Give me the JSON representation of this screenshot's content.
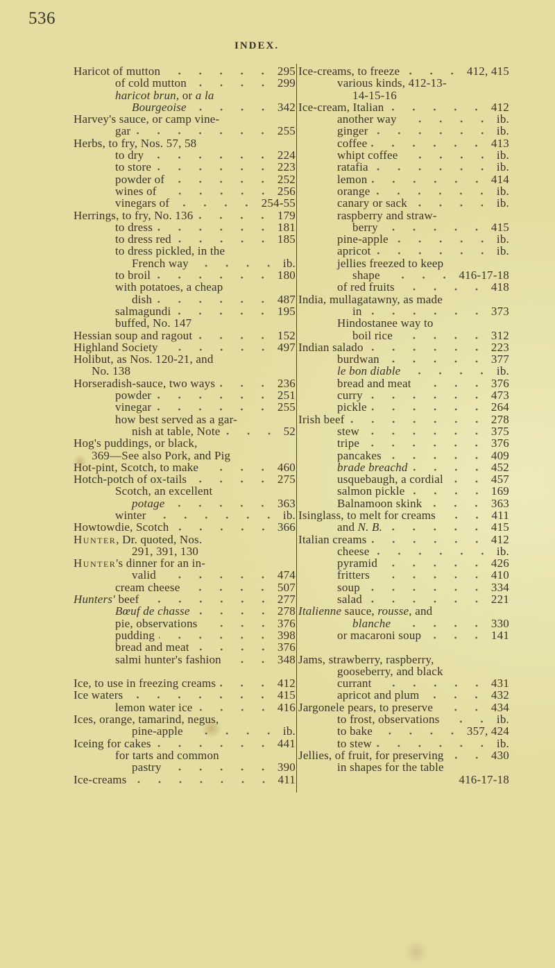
{
  "header": {
    "page_number": "536",
    "running_head": "INDEX."
  },
  "left": [
    {
      "text": "Haricot of mutton",
      "p": "295",
      "l": 0
    },
    {
      "text": "of cold mutton",
      "p": "299",
      "l": 1
    },
    {
      "parts": [
        {
          "s": "haricot brun,",
          "i": true
        },
        {
          "s": " or "
        },
        {
          "s": "a la",
          "i": true
        }
      ],
      "l": 1
    },
    {
      "parts": [
        {
          "s": "Bourgeoise",
          "i": true
        }
      ],
      "p": "342",
      "l": 2
    },
    {
      "text": "Harvey's sauce, or camp vine-",
      "l": 0
    },
    {
      "text": "gar",
      "p": "255",
      "l": 1
    },
    {
      "text": "Herbs, to fry, Nos. 57, 58",
      "l": 0
    },
    {
      "text": "to dry",
      "p": "224",
      "l": 1
    },
    {
      "text": "to store",
      "p": "223",
      "l": 1
    },
    {
      "text": "powder of",
      "p": "252",
      "l": 1
    },
    {
      "text": "wines of",
      "p": "256",
      "l": 1
    },
    {
      "text": "vinegars of",
      "p": "254-55",
      "l": 1
    },
    {
      "text": "Herrings, to fry, No. 136",
      "p": "179",
      "l": 0
    },
    {
      "text": "to dress",
      "p": "181",
      "l": 1
    },
    {
      "text": "to dress red",
      "p": "185",
      "l": 1
    },
    {
      "text": "to dress pickled, in the",
      "l": 1
    },
    {
      "text": "French way",
      "p": "ib.",
      "l": 2
    },
    {
      "text": "to broil",
      "p": "180",
      "l": 1
    },
    {
      "text": "with potatoes, a cheap",
      "l": 1
    },
    {
      "text": "dish",
      "p": "487",
      "l": 2
    },
    {
      "text": "salmagundi",
      "p": "195",
      "l": 1
    },
    {
      "text": "buffed, No. 147",
      "l": 1
    },
    {
      "text": "Hessian soup and ragout",
      "p": "152",
      "l": 0
    },
    {
      "text": "Highland Society",
      "p": "497",
      "l": 0
    },
    {
      "text": "Holibut, as Nos. 120-21, and",
      "l": 0
    },
    {
      "text": "No. 138",
      "l": "h"
    },
    {
      "text": "Horseradish-sauce, two ways",
      "p": "236",
      "l": 0
    },
    {
      "text": "powder",
      "p": "251",
      "l": 1
    },
    {
      "text": "vinegar",
      "p": "255",
      "l": 1
    },
    {
      "text": "how best served as a gar-",
      "l": 1
    },
    {
      "text": "nish at table, Note",
      "p": "52",
      "l": 2
    },
    {
      "text": "Hog's puddings, or black,",
      "l": 0
    },
    {
      "text": "369—See also Pork, and Pig",
      "l": "h"
    },
    {
      "text": "Hot-pint, Scotch, to make",
      "p": "460",
      "l": 0
    },
    {
      "text": "Hotch-potch of ox-tails",
      "p": "275",
      "l": 0
    },
    {
      "text": "Scotch, an excellent",
      "l": 1
    },
    {
      "parts": [
        {
          "s": "potage",
          "i": true
        }
      ],
      "p": "363",
      "l": 2
    },
    {
      "text": "winter",
      "p": "ib.",
      "l": 1
    },
    {
      "text": "Howtowdie, Scotch",
      "p": "366",
      "l": 0
    },
    {
      "parts": [
        {
          "s": "Hunter",
          "sc": true
        },
        {
          "s": ", Dr. quoted, Nos."
        }
      ],
      "l": 0
    },
    {
      "text": "291, 391, 130",
      "l": 2
    },
    {
      "parts": [
        {
          "s": "Hunter",
          "sc": true
        },
        {
          "s": "'s dinner for an in-"
        }
      ],
      "l": 0
    },
    {
      "text": "valid",
      "p": "474",
      "l": 2
    },
    {
      "text": "cream cheese",
      "p": "507",
      "l": 1
    },
    {
      "parts": [
        {
          "s": "Hunters'",
          "i": true
        },
        {
          "s": " beef"
        }
      ],
      "p": "277",
      "l": 0
    },
    {
      "parts": [
        {
          "s": "Bœuf de chasse",
          "i": true
        }
      ],
      "p": "278",
      "l": 1
    },
    {
      "text": "pie, observations",
      "p": "376",
      "l": 1
    },
    {
      "text": "pudding",
      "p": "398",
      "l": 1
    },
    {
      "text": "bread and meat",
      "p": "376",
      "l": 1
    },
    {
      "text": "salmi hunter's fashion",
      "p": "348",
      "l": 1
    },
    {
      "blank": true
    },
    {
      "text": "Ice, to use in freezing creams",
      "p": "412",
      "l": 0
    },
    {
      "text": "Ice waters",
      "p": "415",
      "l": 0
    },
    {
      "text": "lemon water ice",
      "p": "416",
      "l": 1
    },
    {
      "text": "Ices, orange, tamarind, negus,",
      "l": 0
    },
    {
      "text": "pine-apple",
      "p": "ib.",
      "l": 2
    },
    {
      "text": "Iceing for cakes",
      "p": "441",
      "l": 0
    },
    {
      "text": "for tarts and common",
      "l": 1
    },
    {
      "text": "pastry",
      "p": "390",
      "l": 2
    },
    {
      "text": "Ice-creams",
      "p": "411",
      "l": 0
    }
  ],
  "right": [
    {
      "text": "Ice-creams, to freeze",
      "p": "412, 415",
      "l": 0
    },
    {
      "text": "various kinds, 412-13-",
      "l": 1
    },
    {
      "text": "14-15-16",
      "l": 2
    },
    {
      "text": "Ice-cream, Italian",
      "p": "412",
      "l": 0
    },
    {
      "text": "another way",
      "p": "ib.",
      "l": 1
    },
    {
      "text": "ginger",
      "p": "ib.",
      "l": 1
    },
    {
      "text": "coffee",
      "p": "413",
      "l": 1
    },
    {
      "text": "whipt coffee",
      "p": "ib.",
      "l": 1
    },
    {
      "text": "ratafia",
      "p": "ib.",
      "l": 1
    },
    {
      "text": "lemon",
      "p": "414",
      "l": 1
    },
    {
      "text": "orange",
      "p": "ib.",
      "l": 1
    },
    {
      "text": "canary or sack",
      "p": "ib.",
      "l": 1
    },
    {
      "text": "raspberry and straw-",
      "l": 1
    },
    {
      "text": "berry",
      "p": "415",
      "l": 2
    },
    {
      "text": "pine-apple",
      "p": "ib.",
      "l": 1
    },
    {
      "text": "apricot",
      "p": "ib.",
      "l": 1
    },
    {
      "text": "jellies freezed to keep",
      "l": 1
    },
    {
      "text": "shape",
      "p": "416-17-18",
      "l": 2
    },
    {
      "text": "of red fruits",
      "p": "418",
      "l": 1
    },
    {
      "text": "India, mullagatawny, as made",
      "l": 0
    },
    {
      "text": "in",
      "p": "373",
      "l": 2
    },
    {
      "text": "Hindostanee way to",
      "l": 1
    },
    {
      "text": "boil rice",
      "p": "312",
      "l": 2
    },
    {
      "text": "Indian salado",
      "p": "223",
      "l": 0
    },
    {
      "text": "burdwan",
      "p": "377",
      "l": 1
    },
    {
      "parts": [
        {
          "s": "le bon diable",
          "i": true
        }
      ],
      "p": "ib.",
      "l": 1
    },
    {
      "text": "bread and meat",
      "p": "376",
      "l": 1
    },
    {
      "text": "curry",
      "p": "473",
      "l": 1
    },
    {
      "text": "pickle",
      "p": "264",
      "l": 1
    },
    {
      "text": "Irish beef",
      "p": "278",
      "l": 0
    },
    {
      "text": "stew",
      "p": "375",
      "l": 1
    },
    {
      "text": "tripe",
      "p": "376",
      "l": 1
    },
    {
      "text": "pancakes",
      "p": "409",
      "l": 1
    },
    {
      "parts": [
        {
          "s": "brade breachd",
          "i": true
        }
      ],
      "p": "452",
      "l": 1
    },
    {
      "text": "usquebaugh, a cordial",
      "p": "457",
      "l": 1
    },
    {
      "text": "salmon pickle",
      "p": "169",
      "l": 1
    },
    {
      "text": "Balnamoon skink",
      "p": "363",
      "l": 1
    },
    {
      "text": "Isinglass, to melt for creams",
      "p": "411",
      "l": 0
    },
    {
      "parts": [
        {
          "s": "and "
        },
        {
          "s": "N. B.",
          "i": true
        }
      ],
      "p": "415",
      "l": 1
    },
    {
      "text": "Italian creams",
      "p": "412",
      "l": 0
    },
    {
      "text": "cheese",
      "p": "ib.",
      "l": 1
    },
    {
      "text": "pyramid",
      "p": "426",
      "l": 1
    },
    {
      "text": "fritters",
      "p": "410",
      "l": 1
    },
    {
      "text": "soup",
      "p": "334",
      "l": 1
    },
    {
      "text": "salad",
      "p": "221",
      "l": 1
    },
    {
      "parts": [
        {
          "s": "Italienne",
          "i": true
        },
        {
          "s": " sauce, "
        },
        {
          "s": "rousse,",
          "i": true
        },
        {
          "s": " and"
        }
      ],
      "l": 0
    },
    {
      "parts": [
        {
          "s": "blanche",
          "i": true
        }
      ],
      "p": "330",
      "l": 2
    },
    {
      "text": "or macaroni soup",
      "p": "141",
      "l": 1
    },
    {
      "blank": true
    },
    {
      "text": "Jams, strawberry, raspberry,",
      "l": 0
    },
    {
      "text": "gooseberry, and black",
      "l": 1
    },
    {
      "text": "currant",
      "p": "431",
      "l": 1
    },
    {
      "text": "apricot and plum",
      "p": "432",
      "l": 1
    },
    {
      "text": "Jargonele pears, to preserve",
      "p": "434",
      "l": 0
    },
    {
      "text": "to frost, observations",
      "p": "ib.",
      "l": 1
    },
    {
      "text": "to bake",
      "p": "357, 424",
      "l": 1
    },
    {
      "text": "to stew",
      "p": "ib.",
      "l": 1
    },
    {
      "text": "Jellies, of fruit, for preserving",
      "p": "430",
      "l": 0
    },
    {
      "text": "in shapes for the table",
      "l": 1
    },
    {
      "p": "416-17-18",
      "l": 2
    }
  ]
}
